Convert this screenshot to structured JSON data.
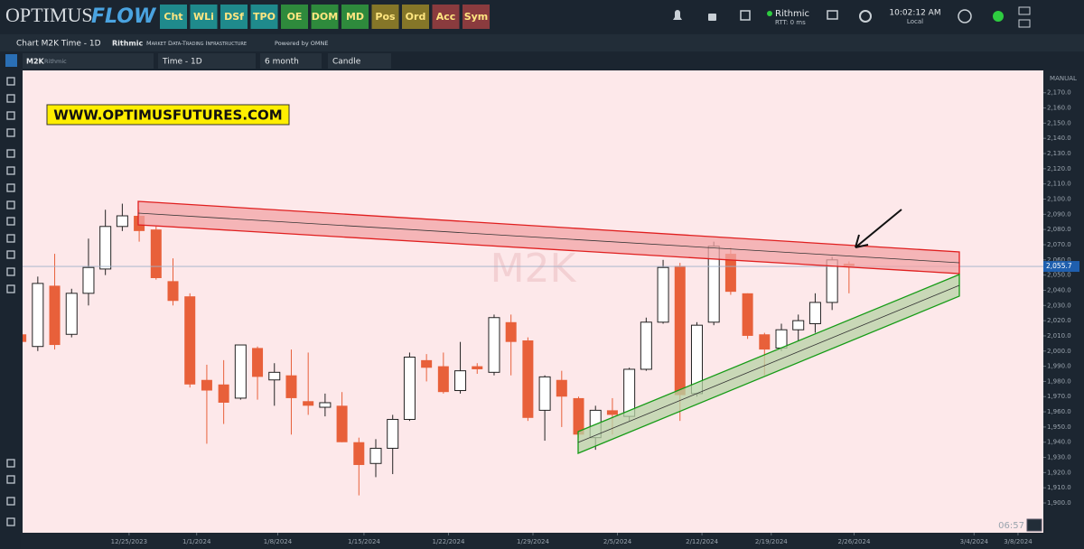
{
  "header": {
    "logo_a": "OPTIMUS",
    "logo_b": "FLOW",
    "buttons": [
      "Cht",
      "WLi",
      "DSf",
      "TPO",
      "OE",
      "DOM",
      "MD",
      "Pos",
      "Ord",
      "Acc",
      "Sym"
    ],
    "connection": "Rithmic",
    "rtt": "RTT: 0 ms",
    "time": "10:02:12 AM",
    "zone": "Local"
  },
  "tab": {
    "title": "Chart M2K Time - 1D",
    "brand": "Rithmic",
    "brand_tagline": "Market Data-Trading Infrastructure",
    "powered": "Powered by OMNE"
  },
  "toolbar": {
    "symbol": "M2K",
    "feed": "Rithmic",
    "interval": "Time - 1D",
    "range": "6 month",
    "style": "Candle"
  },
  "chart_data": {
    "type": "candlestick",
    "watermark": "M2K",
    "banner": "WWW.OPTIMUSFUTURES.COM",
    "axis_mode": "MANUAL",
    "timer": "06:57",
    "up_color": "#ffffff",
    "down_color": "#e8603a",
    "last_price": {
      "value": 2055.7,
      "label": "2,055.7"
    },
    "open": [
      2011,
      2003,
      2043,
      2011,
      2038,
      2054,
      2082,
      2089,
      2080,
      2046,
      2036,
      1981,
      1978,
      1969,
      2002,
      1981,
      1984,
      1967,
      1963,
      1964,
      1940,
      1926,
      1936,
      1955,
      1994,
      1990,
      1974,
      1990,
      1986,
      2019,
      2007,
      1961,
      1981,
      1969,
      1943,
      1961,
      1957,
      1988,
      2019,
      2056,
      1972,
      2019,
      2064,
      2038,
      2011,
      2002,
      2014,
      2018,
      2032,
      2057.5
    ],
    "high": [
      2012,
      2049,
      2064,
      2041,
      2074,
      2093,
      2097,
      2093,
      2082,
      2061,
      2038,
      1991,
      1994,
      2004,
      2003,
      1992,
      2001,
      1999,
      1972,
      1973,
      1943,
      1942,
      1958,
      1999,
      1998,
      1999,
      2006,
      1992,
      2024,
      2024,
      2009,
      1984,
      1987,
      1970,
      1964,
      1969,
      1989,
      2022,
      2060,
      2058,
      2019,
      2072,
      2068,
      2038,
      2012,
      2018,
      2024,
      2038,
      2062,
      2059
    ],
    "low": [
      2005,
      2000,
      2001,
      2009,
      2030,
      2050,
      2079,
      2072,
      2047,
      2030,
      1976,
      1939,
      1952,
      1968,
      1968,
      1964,
      1945,
      1958,
      1957,
      1940,
      1905,
      1917,
      1919,
      1954,
      1980,
      1972,
      1972,
      1985,
      1984,
      1984,
      1954,
      1941,
      1950,
      1943,
      1935,
      1945,
      1954,
      1987,
      2018,
      1954,
      1970,
      2017,
      2037,
      2008,
      1984,
      2000,
      2007,
      2012,
      2027,
      2038
    ],
    "close": [
      2006,
      2044.5,
      2004,
      2038,
      2055,
      2082,
      2089,
      2079,
      2048,
      2033,
      1978,
      1974,
      1966,
      2004,
      1983,
      1986,
      1969,
      1964,
      1966,
      1940,
      1925,
      1936,
      1955,
      1996,
      1989,
      1973,
      1987,
      1988,
      2022,
      2006,
      1956,
      1983,
      1970,
      1945,
      1961,
      1958,
      1988,
      2019,
      2055,
      1971,
      2017,
      2069,
      2039,
      2010,
      2001,
      2014,
      2020,
      2032,
      2060,
      2055.7
    ],
    "xlim": [
      0.1,
      60.5
    ],
    "xticks": [
      {
        "value": 6.4,
        "label": "12/25/2023"
      },
      {
        "value": 10.4,
        "label": "1/1/2024"
      },
      {
        "value": 15.2,
        "label": "1/8/2024"
      },
      {
        "value": 20.3,
        "label": "1/15/2024"
      },
      {
        "value": 25.3,
        "label": "1/22/2024"
      },
      {
        "value": 30.3,
        "label": "1/29/2024"
      },
      {
        "value": 35.3,
        "label": "2/5/2024"
      },
      {
        "value": 40.3,
        "label": "2/12/2024"
      },
      {
        "value": 44.4,
        "label": "2/19/2024"
      },
      {
        "value": 49.3,
        "label": "2/26/2024"
      },
      {
        "value": 56.4,
        "label": "3/4/2024"
      },
      {
        "value": 59.0,
        "label": "3/8/2024"
      }
    ],
    "ylim": [
      1880.4,
      2184.7
    ],
    "yticks": [
      {
        "value": 2170,
        "label": "2,170.0"
      },
      {
        "value": 2160,
        "label": "2,160.0"
      },
      {
        "value": 2150,
        "label": "2,150.0"
      },
      {
        "value": 2140,
        "label": "2,140.0"
      },
      {
        "value": 2130,
        "label": "2,130.0"
      },
      {
        "value": 2120,
        "label": "2,120.0"
      },
      {
        "value": 2110,
        "label": "2,110.0"
      },
      {
        "value": 2100,
        "label": "2,100.0"
      },
      {
        "value": 2090,
        "label": "2,090.0"
      },
      {
        "value": 2080,
        "label": "2,080.0"
      },
      {
        "value": 2070,
        "label": "2,070.0"
      },
      {
        "value": 2060,
        "label": "2,060.0"
      },
      {
        "value": 2050,
        "label": "2,050.0"
      },
      {
        "value": 2040,
        "label": "2,040.0"
      },
      {
        "value": 2030,
        "label": "2,030.0"
      },
      {
        "value": 2020,
        "label": "2,020.0"
      },
      {
        "value": 2010,
        "label": "2,010.0"
      },
      {
        "value": 2000,
        "label": "2,000.0"
      },
      {
        "value": 1990,
        "label": "1,990.0"
      },
      {
        "value": 1980,
        "label": "1,980.0"
      },
      {
        "value": 1970,
        "label": "1,970.0"
      },
      {
        "value": 1960,
        "label": "1,960.0"
      },
      {
        "value": 1950,
        "label": "1,950.0"
      },
      {
        "value": 1940,
        "label": "1,940.0"
      },
      {
        "value": 1930,
        "label": "1,930.0"
      },
      {
        "value": 1920,
        "label": "1,920.0"
      },
      {
        "value": 1910,
        "label": "1,910.0"
      },
      {
        "value": 1900,
        "label": "1,900.0"
      }
    ]
  }
}
